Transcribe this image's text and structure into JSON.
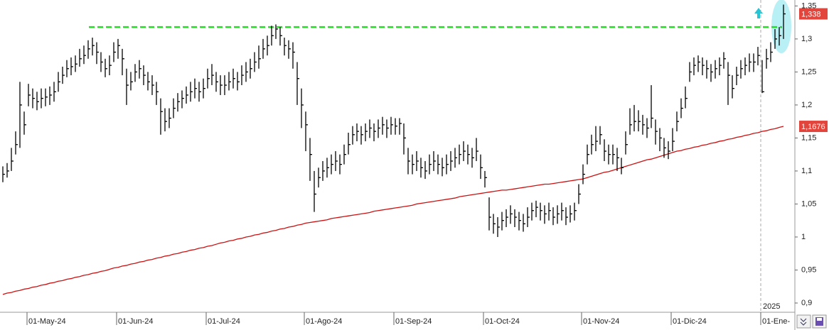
{
  "chart_data": {
    "type": "ohlc",
    "categories": [
      null,
      null,
      null,
      null,
      null,
      null,
      "01-May-24",
      null,
      null,
      null,
      null,
      null,
      null,
      null,
      null,
      null,
      null,
      null,
      null,
      null,
      null,
      null,
      null,
      null,
      null,
      null,
      null,
      "01-Jun-24",
      null,
      null,
      null,
      null,
      null,
      null,
      null,
      null,
      null,
      null,
      null,
      null,
      null,
      null,
      null,
      null,
      null,
      null,
      null,
      null,
      "01-Jul-24",
      null,
      null,
      null,
      null,
      null,
      null,
      null,
      null,
      null,
      null,
      null,
      null,
      null,
      null,
      null,
      null,
      null,
      null,
      null,
      null,
      null,
      null,
      "01-Ago-24",
      null,
      null,
      null,
      null,
      null,
      null,
      null,
      null,
      null,
      null,
      null,
      null,
      null,
      null,
      null,
      null,
      null,
      null,
      null,
      null,
      "01-Sep-24",
      null,
      null,
      null,
      null,
      null,
      null,
      null,
      null,
      null,
      null,
      null,
      null,
      null,
      null,
      null,
      null,
      null,
      null,
      null,
      null,
      "01-Oct-24",
      null,
      null,
      null,
      null,
      null,
      null,
      null,
      null,
      null,
      null,
      null,
      null,
      null,
      null,
      null,
      null,
      null,
      null,
      null,
      null,
      null,
      null,
      "01-Nov-24",
      null,
      null,
      null,
      null,
      null,
      null,
      null,
      null,
      null,
      null,
      null,
      null,
      null,
      null,
      null,
      null,
      null,
      null,
      null,
      null,
      "01-Dic-24",
      null,
      null,
      null,
      null,
      null,
      null,
      null,
      null,
      null,
      null,
      null,
      null,
      null,
      null,
      null,
      null,
      null,
      null,
      null,
      null,
      "01-Ene-",
      null,
      null,
      null,
      null,
      null
    ],
    "ylim": [
      0.886,
      1.359
    ],
    "yticks": [
      {
        "value": 0.9,
        "label": "0,9"
      },
      {
        "value": 0.95,
        "label": "0,95"
      },
      1,
      {
        "value": 1.05,
        "label": "1,05"
      },
      {
        "value": 1.1,
        "label": "1,1"
      },
      {
        "value": 1.15,
        "label": "1,15"
      },
      {
        "value": 1.2,
        "label": "1,2"
      },
      {
        "value": 1.25,
        "label": "1,25"
      },
      {
        "value": 1.3,
        "label": "1,3"
      },
      {
        "value": 1.35,
        "label": "1,35"
      }
    ],
    "bars": {
      "color": "#000000",
      "high": [
        1.107,
        1.112,
        1.135,
        1.16,
        1.235,
        1.19,
        1.232,
        1.225,
        1.22,
        1.225,
        1.225,
        1.228,
        1.235,
        1.25,
        1.258,
        1.268,
        1.272,
        1.275,
        1.285,
        1.29,
        1.298,
        1.302,
        1.295,
        1.28,
        1.27,
        1.275,
        1.295,
        1.3,
        1.285,
        1.255,
        1.25,
        1.262,
        1.268,
        1.26,
        1.25,
        1.245,
        1.235,
        1.21,
        1.195,
        1.195,
        1.21,
        1.218,
        1.222,
        1.228,
        1.235,
        1.24,
        1.235,
        1.24,
        1.255,
        1.262,
        1.25,
        1.245,
        1.245,
        1.25,
        1.255,
        1.25,
        1.26,
        1.265,
        1.27,
        1.28,
        1.29,
        1.3,
        1.305,
        1.32,
        1.322,
        1.318,
        1.302,
        1.298,
        1.295,
        1.265,
        1.225,
        1.19,
        1.15,
        1.1,
        1.105,
        1.115,
        1.12,
        1.125,
        1.13,
        1.125,
        1.14,
        1.158,
        1.168,
        1.172,
        1.168,
        1.172,
        1.178,
        1.172,
        1.178,
        1.182,
        1.178,
        1.182,
        1.18,
        1.18,
        1.172,
        1.135,
        1.125,
        1.13,
        1.12,
        1.115,
        1.125,
        1.13,
        1.125,
        1.12,
        1.125,
        1.13,
        1.135,
        1.14,
        1.145,
        1.14,
        1.135,
        1.15,
        1.125,
        1.1,
        1.06,
        1.035,
        1.03,
        1.038,
        1.042,
        1.048,
        1.042,
        1.038,
        1.035,
        1.045,
        1.052,
        1.055,
        1.052,
        1.048,
        1.052,
        1.045,
        1.048,
        1.052,
        1.045,
        1.048,
        1.052,
        1.08,
        1.11,
        1.14,
        1.155,
        1.168,
        1.168,
        1.148,
        1.14,
        1.14,
        1.135,
        1.12,
        1.16,
        1.195,
        1.2,
        1.192,
        1.185,
        1.18,
        1.23,
        1.178,
        1.165,
        1.15,
        1.145,
        1.165,
        1.19,
        1.21,
        1.228,
        1.265,
        1.272,
        1.275,
        1.272,
        1.268,
        1.262,
        1.268,
        1.272,
        1.28,
        1.265,
        1.245,
        1.258,
        1.268,
        1.272,
        1.278,
        1.278,
        1.288,
        1.268,
        1.285,
        1.295,
        1.315,
        1.318,
        1.352
      ],
      "low": [
        1.083,
        1.09,
        1.1,
        1.125,
        1.135,
        1.155,
        1.198,
        1.195,
        1.192,
        1.195,
        1.198,
        1.2,
        1.205,
        1.22,
        1.232,
        1.242,
        1.245,
        1.25,
        1.258,
        1.262,
        1.27,
        1.275,
        1.262,
        1.25,
        1.242,
        1.245,
        1.265,
        1.27,
        1.245,
        1.2,
        1.222,
        1.235,
        1.24,
        1.23,
        1.222,
        1.215,
        1.2,
        1.155,
        1.16,
        1.165,
        1.18,
        1.19,
        1.195,
        1.202,
        1.205,
        1.21,
        1.205,
        1.21,
        1.225,
        1.23,
        1.22,
        1.215,
        1.215,
        1.222,
        1.225,
        1.222,
        1.23,
        1.235,
        1.24,
        1.25,
        1.255,
        1.27,
        1.275,
        1.29,
        1.3,
        1.29,
        1.275,
        1.27,
        1.255,
        1.2,
        1.165,
        1.13,
        1.085,
        1.038,
        1.075,
        1.085,
        1.09,
        1.095,
        1.1,
        1.095,
        1.11,
        1.125,
        1.14,
        1.145,
        1.14,
        1.145,
        1.15,
        1.145,
        1.15,
        1.155,
        1.15,
        1.155,
        1.155,
        1.155,
        1.125,
        1.095,
        1.095,
        1.1,
        1.09,
        1.088,
        1.095,
        1.1,
        1.095,
        1.092,
        1.095,
        1.1,
        1.105,
        1.11,
        1.115,
        1.11,
        1.105,
        1.115,
        1.088,
        1.075,
        1.01,
        1.005,
        1.0,
        1.01,
        1.015,
        1.02,
        1.015,
        1.01,
        1.008,
        1.015,
        1.025,
        1.03,
        1.025,
        1.02,
        1.025,
        1.018,
        1.02,
        1.025,
        1.018,
        1.022,
        1.025,
        1.05,
        1.08,
        1.11,
        1.125,
        1.13,
        1.14,
        1.115,
        1.11,
        1.11,
        1.1,
        1.095,
        1.125,
        1.155,
        1.16,
        1.16,
        1.155,
        1.15,
        1.165,
        1.14,
        1.13,
        1.12,
        1.118,
        1.13,
        1.16,
        1.18,
        1.195,
        1.235,
        1.245,
        1.25,
        1.245,
        1.24,
        1.235,
        1.24,
        1.245,
        1.255,
        1.2,
        1.21,
        1.23,
        1.24,
        1.245,
        1.25,
        1.25,
        1.26,
        1.218,
        1.255,
        1.265,
        1.285,
        1.29,
        1.3
      ],
      "close": [
        1.095,
        1.1,
        1.115,
        1.14,
        1.2,
        1.17,
        1.215,
        1.21,
        1.205,
        1.21,
        1.212,
        1.215,
        1.22,
        1.235,
        1.245,
        1.255,
        1.258,
        1.262,
        1.27,
        1.275,
        1.285,
        1.29,
        1.28,
        1.265,
        1.255,
        1.26,
        1.28,
        1.29,
        1.27,
        1.23,
        1.235,
        1.25,
        1.255,
        1.245,
        1.235,
        1.23,
        1.22,
        1.19,
        1.175,
        1.18,
        1.195,
        1.205,
        1.21,
        1.215,
        1.22,
        1.225,
        1.22,
        1.225,
        1.24,
        1.245,
        1.235,
        1.23,
        1.23,
        1.235,
        1.24,
        1.235,
        1.245,
        1.25,
        1.255,
        1.265,
        1.27,
        1.285,
        1.29,
        1.305,
        1.315,
        1.305,
        1.29,
        1.285,
        1.28,
        1.24,
        1.2,
        1.17,
        1.125,
        1.065,
        1.09,
        1.1,
        1.105,
        1.11,
        1.115,
        1.11,
        1.125,
        1.14,
        1.155,
        1.16,
        1.155,
        1.16,
        1.165,
        1.16,
        1.165,
        1.17,
        1.165,
        1.17,
        1.168,
        1.172,
        1.15,
        1.115,
        1.11,
        1.115,
        1.105,
        1.1,
        1.11,
        1.115,
        1.11,
        1.105,
        1.11,
        1.115,
        1.12,
        1.125,
        1.13,
        1.125,
        1.12,
        1.13,
        1.105,
        1.09,
        1.03,
        1.02,
        1.015,
        1.025,
        1.03,
        1.035,
        1.03,
        1.025,
        1.02,
        1.03,
        1.04,
        1.045,
        1.04,
        1.035,
        1.04,
        1.03,
        1.035,
        1.04,
        1.03,
        1.035,
        1.04,
        1.065,
        1.095,
        1.125,
        1.14,
        1.145,
        1.155,
        1.13,
        1.125,
        1.125,
        1.12,
        1.105,
        1.14,
        1.17,
        1.175,
        1.175,
        1.17,
        1.165,
        1.18,
        1.16,
        1.15,
        1.135,
        1.13,
        1.145,
        1.175,
        1.195,
        1.21,
        1.25,
        1.26,
        1.265,
        1.26,
        1.255,
        1.25,
        1.255,
        1.26,
        1.27,
        1.245,
        1.225,
        1.245,
        1.255,
        1.26,
        1.265,
        1.265,
        1.275,
        1.22,
        1.27,
        1.28,
        1.3,
        1.305,
        1.338
      ]
    },
    "moving_average": {
      "color": "#cc1111",
      "values": [
        0.913,
        0.915,
        0.916,
        0.918,
        0.919,
        0.921,
        0.922,
        0.924,
        0.925,
        0.927,
        0.928,
        0.93,
        0.931,
        0.933,
        0.934,
        0.936,
        0.937,
        0.939,
        0.94,
        0.942,
        0.943,
        0.945,
        0.946,
        0.948,
        0.949,
        0.951,
        0.953,
        0.954,
        0.956,
        0.957,
        0.959,
        0.96,
        0.962,
        0.963,
        0.965,
        0.966,
        0.968,
        0.969,
        0.971,
        0.972,
        0.974,
        0.975,
        0.977,
        0.978,
        0.98,
        0.981,
        0.983,
        0.984,
        0.986,
        0.987,
        0.989,
        0.991,
        0.992,
        0.994,
        0.995,
        0.997,
        0.998,
        1.0,
        1.001,
        1.003,
        1.004,
        1.006,
        1.007,
        1.009,
        1.01,
        1.012,
        1.013,
        1.015,
        1.016,
        1.018,
        1.019,
        1.021,
        1.022,
        1.023,
        1.024,
        1.025,
        1.026,
        1.028,
        1.029,
        1.03,
        1.031,
        1.032,
        1.033,
        1.034,
        1.035,
        1.036,
        1.037,
        1.039,
        1.04,
        1.041,
        1.042,
        1.043,
        1.044,
        1.045,
        1.046,
        1.047,
        1.048,
        1.05,
        1.051,
        1.052,
        1.053,
        1.054,
        1.055,
        1.056,
        1.057,
        1.058,
        1.059,
        1.061,
        1.062,
        1.063,
        1.064,
        1.065,
        1.066,
        1.067,
        1.068,
        1.069,
        1.07,
        1.071,
        1.071,
        1.072,
        1.073,
        1.074,
        1.075,
        1.076,
        1.077,
        1.078,
        1.079,
        1.08,
        1.08,
        1.081,
        1.082,
        1.083,
        1.084,
        1.085,
        1.086,
        1.087,
        1.088,
        1.09,
        1.092,
        1.094,
        1.096,
        1.098,
        1.099,
        1.101,
        1.103,
        1.105,
        1.107,
        1.109,
        1.111,
        1.113,
        1.115,
        1.117,
        1.118,
        1.12,
        1.122,
        1.124,
        1.126,
        1.128,
        1.13,
        1.131,
        1.133,
        1.134,
        1.136,
        1.137,
        1.139,
        1.14,
        1.142,
        1.143,
        1.145,
        1.146,
        1.148,
        1.149,
        1.151,
        1.152,
        1.154,
        1.155,
        1.157,
        1.158,
        1.16,
        1.161,
        1.163,
        1.164,
        1.166,
        1.1676
      ]
    },
    "resistance": {
      "value": 1.318,
      "color": "#22dd22"
    },
    "price_labels": [
      {
        "value": 1.338,
        "label": "1,338",
        "color": "#e2453c"
      },
      {
        "value": 1.1676,
        "label": "1,1676",
        "color": "#e2453c"
      }
    ],
    "year_label": "2025"
  }
}
